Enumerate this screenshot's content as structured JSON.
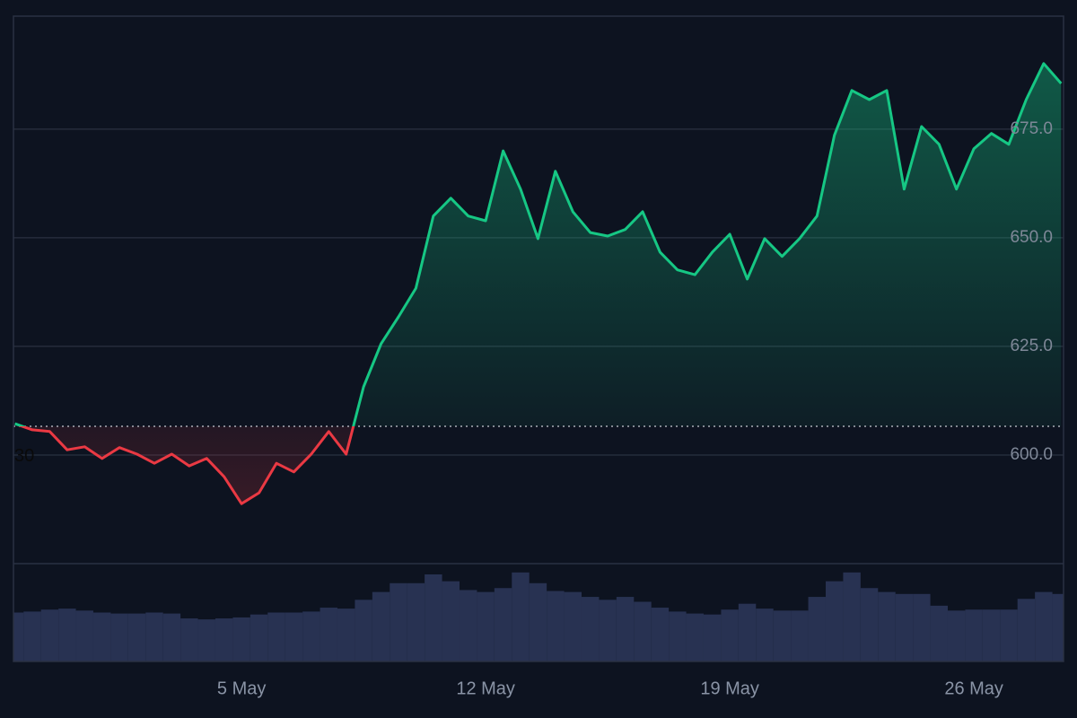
{
  "chart_data": {
    "type": "line",
    "x": [
      -2.5,
      -2,
      -1.5,
      -1,
      -0.5,
      0,
      0.5,
      1,
      1.5,
      2,
      2.5,
      3,
      3.5,
      4,
      4.5,
      5,
      5.5,
      6,
      6.5,
      7,
      7.5,
      8,
      8.5,
      9,
      9.5,
      10,
      10.5,
      11,
      11.5,
      12,
      12.5,
      13,
      13.5,
      14,
      14.5,
      15,
      15.5,
      16,
      16.5,
      17,
      17.5,
      18,
      18.5,
      19,
      19.5,
      20,
      20.5,
      21,
      21.5,
      22,
      22.5,
      23,
      23.5,
      24,
      24.5,
      25,
      25.5,
      26,
      26.5,
      27,
      27.5
    ],
    "values": [
      607.2,
      605.8,
      605.4,
      601.2,
      601.9,
      599.2,
      601.7,
      600.2,
      598.1,
      600.2,
      597.5,
      599.2,
      595.0,
      588.8,
      591.3,
      598.1,
      596.1,
      600.2,
      605.4,
      600.2,
      615.7,
      625.6,
      631.8,
      638.4,
      655.0,
      659.1,
      655.0,
      653.9,
      670.0,
      661.2,
      649.8,
      665.3,
      656.0,
      651.2,
      650.4,
      651.9,
      656.0,
      646.7,
      642.6,
      641.5,
      646.7,
      650.8,
      640.5,
      649.8,
      645.7,
      649.8,
      655.0,
      673.6,
      683.9,
      681.8,
      683.9,
      661.2,
      675.6,
      671.5,
      661.2,
      670.5,
      674.0,
      671.5,
      681.8,
      690.1,
      685.5
    ],
    "volume": [
      50,
      51,
      53,
      54,
      52,
      50,
      49,
      49,
      50,
      49,
      44,
      43,
      44,
      45,
      48,
      50,
      50,
      51,
      55,
      54,
      63,
      71,
      80,
      80,
      89,
      82,
      73,
      71,
      75,
      91,
      80,
      72,
      71,
      66,
      63,
      66,
      61,
      55,
      51,
      49,
      48,
      53,
      59,
      54,
      52,
      52,
      66,
      82,
      91,
      75,
      71,
      69,
      69,
      57,
      52,
      53,
      53,
      53,
      64,
      71,
      69
    ],
    "volume_ylim": [
      0,
      100
    ],
    "baseline": 606.6,
    "baseline_label": "30",
    "up_color": "#16c784",
    "down_color": "#ea3943",
    "volume_color": "#283252",
    "xlim": [
      -2.54,
      27.57
    ],
    "xticks": [
      {
        "value": 4,
        "label": "5 May"
      },
      {
        "value": 11,
        "label": "12 May"
      },
      {
        "value": 18,
        "label": "19 May"
      },
      {
        "value": 25,
        "label": "26 May"
      }
    ],
    "ylim": [
      575,
      701
    ],
    "yticks": [
      {
        "value": 600,
        "label": "600.0"
      },
      {
        "value": 625,
        "label": "625.0"
      },
      {
        "value": 650,
        "label": "650.0"
      },
      {
        "value": 675,
        "label": "675.0"
      }
    ],
    "grid": true
  }
}
